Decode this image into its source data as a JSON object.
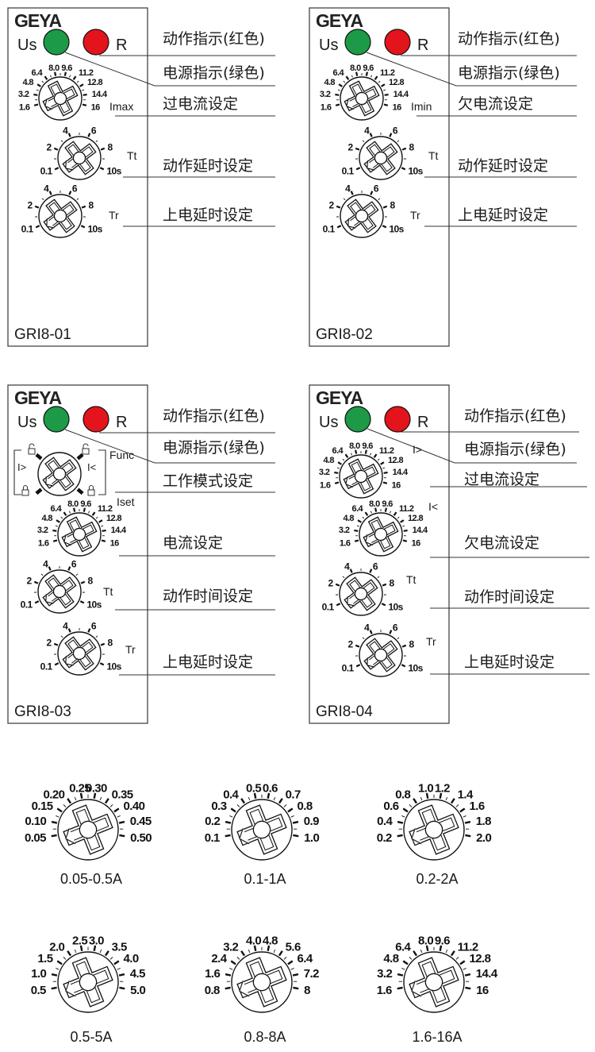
{
  "colors": {
    "power_led": "#1d9a47",
    "relay_led": "#e3141b",
    "line": "#333333"
  },
  "panels": [
    {
      "logo": "GEYA",
      "model": "GRI8-01",
      "us_label": "Us",
      "r_label": "R",
      "callouts": [
        "动作指示(红色)",
        "电源指示(绿色)",
        "过电流设定",
        "动作延时设定",
        "上电延时设定"
      ],
      "dials": [
        {
          "tag": "Imax",
          "scale": [
            "1.6",
            "3.2",
            "4.8",
            "6.4",
            "8.0",
            "9.6",
            "11.2",
            "12.8",
            "14.4",
            "16"
          ]
        },
        {
          "tag": "Tt",
          "scale": [
            "0.1",
            "2",
            "4",
            "6",
            "8",
            "10s"
          ]
        },
        {
          "tag": "Tr",
          "scale": [
            "0.1",
            "2",
            "4",
            "6",
            "8",
            "10s"
          ]
        }
      ]
    },
    {
      "logo": "GEYA",
      "model": "GRI8-02",
      "us_label": "Us",
      "r_label": "R",
      "callouts": [
        "动作指示(红色)",
        "电源指示(绿色)",
        "欠电流设定",
        "动作延时设定",
        "上电延时设定"
      ],
      "dials": [
        {
          "tag": "Imin",
          "scale": [
            "1.6",
            "3.2",
            "4.8",
            "6.4",
            "8.0",
            "9.6",
            "11.2",
            "12.8",
            "14.4",
            "16"
          ]
        },
        {
          "tag": "Tt",
          "scale": [
            "0.1",
            "2",
            "4",
            "6",
            "8",
            "10s"
          ]
        },
        {
          "tag": "Tr",
          "scale": [
            "0.1",
            "2",
            "4",
            "6",
            "8",
            "10s"
          ]
        }
      ]
    },
    {
      "logo": "GEYA",
      "model": "GRI8-03",
      "us_label": "Us",
      "r_label": "R",
      "callouts": [
        "动作指示(红色)",
        "电源指示(绿色)",
        "工作模式设定",
        "电流设定",
        "动作时间设定",
        "上电延时设定"
      ],
      "func": {
        "tag": "Func",
        "modes": [
          "I>",
          "I<"
        ],
        "icons": [
          "lock-open-icon",
          "lock-closed-icon"
        ]
      },
      "dials": [
        {
          "tag": "Iset",
          "scale": [
            "1.6",
            "3.2",
            "4.8",
            "6.4",
            "8.0",
            "9.6",
            "11.2",
            "12.8",
            "14.4",
            "16"
          ]
        },
        {
          "tag": "Tt",
          "scale": [
            "0.1",
            "2",
            "4",
            "6",
            "8",
            "10s"
          ]
        },
        {
          "tag": "Tr",
          "scale": [
            "0.1",
            "2",
            "4",
            "6",
            "8",
            "10s"
          ]
        }
      ]
    },
    {
      "logo": "GEYA",
      "model": "GRI8-04",
      "us_label": "Us",
      "r_label": "R",
      "callouts": [
        "动作指示(红色)",
        "电源指示(绿色)",
        "过电流设定",
        "欠电流设定",
        "动作时间设定",
        "上电延时设定"
      ],
      "dials": [
        {
          "tag": "I>",
          "scale": [
            "1.6",
            "3.2",
            "4.8",
            "6.4",
            "8.0",
            "9.6",
            "11.2",
            "12.8",
            "14.4",
            "16"
          ]
        },
        {
          "tag": "I<",
          "scale": [
            "1.6",
            "3.2",
            "4.8",
            "6.4",
            "8.0",
            "9.6",
            "11.2",
            "12.8",
            "14.4",
            "16"
          ]
        },
        {
          "tag": "Tt",
          "scale": [
            "0.1",
            "2",
            "4",
            "6",
            "8",
            "10s"
          ]
        },
        {
          "tag": "Tr",
          "scale": [
            "0.1",
            "2",
            "4",
            "6",
            "8",
            "10s"
          ]
        }
      ]
    }
  ],
  "ranges": [
    {
      "caption": "0.05-0.5A",
      "scale": [
        "0.05",
        "0.10",
        "0.15",
        "0.20",
        "0.25",
        "0.30",
        "0.35",
        "0.40",
        "0.45",
        "0.50"
      ]
    },
    {
      "caption": "0.1-1A",
      "scale": [
        "0.1",
        "0.2",
        "0.3",
        "0.4",
        "0.5",
        "0.6",
        "0.7",
        "0.8",
        "0.9",
        "1.0"
      ]
    },
    {
      "caption": "0.2-2A",
      "scale": [
        "0.2",
        "0.4",
        "0.6",
        "0.8",
        "1.0",
        "1.2",
        "1.4",
        "1.6",
        "1.8",
        "2.0"
      ]
    },
    {
      "caption": "0.5-5A",
      "scale": [
        "0.5",
        "1.0",
        "1.5",
        "2.0",
        "2.5",
        "3.0",
        "3.5",
        "4.0",
        "4.5",
        "5.0"
      ]
    },
    {
      "caption": "0.8-8A",
      "scale": [
        "0.8",
        "1.6",
        "2.4",
        "3.2",
        "4.0",
        "4.8",
        "5.6",
        "6.4",
        "7.2",
        "8"
      ]
    },
    {
      "caption": "1.6-16A",
      "scale": [
        "1.6",
        "3.2",
        "4.8",
        "6.4",
        "8.0",
        "9.6",
        "11.2",
        "12.8",
        "14.4",
        "16"
      ]
    }
  ]
}
